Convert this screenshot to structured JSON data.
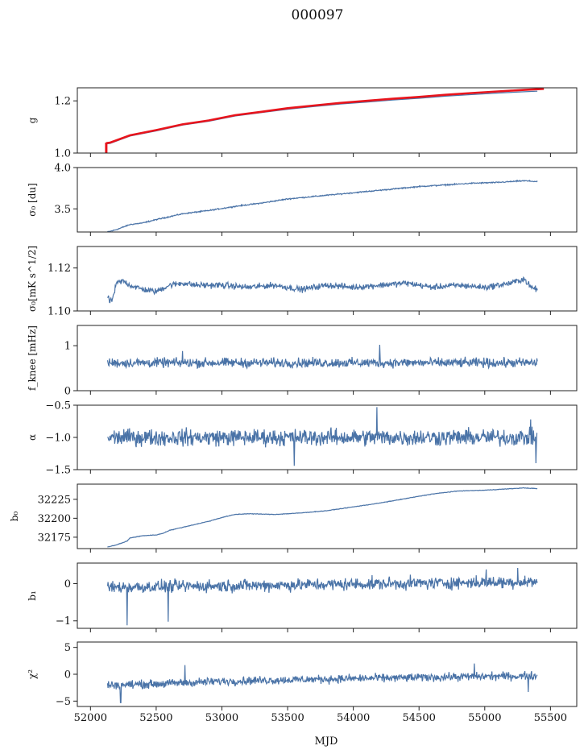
{
  "figure": {
    "title": "000097",
    "xlabel": "MJD"
  },
  "chart_data": [
    {
      "type": "line",
      "ylabel": "g",
      "xlim": [
        51900,
        55700
      ],
      "ylim": [
        1.0,
        1.25
      ],
      "yticks": [
        1.0,
        1.2
      ],
      "ytick_labels": [
        "1.0",
        "1.2"
      ],
      "x_start": 52120,
      "x_end": 55400,
      "series": [
        {
          "color": "#4a73a7",
          "x": [
            52120,
            52150,
            52300,
            52500,
            52700,
            52900,
            53100,
            53300,
            53500,
            53700,
            53900,
            54100,
            54300,
            54500,
            54700,
            54900,
            55100,
            55300,
            55400
          ],
          "y": [
            1.035,
            1.037,
            1.065,
            1.085,
            1.107,
            1.122,
            1.142,
            1.155,
            1.168,
            1.178,
            1.188,
            1.195,
            1.203,
            1.21,
            1.218,
            1.224,
            1.23,
            1.235,
            1.237
          ]
        },
        {
          "color": "#e8141c",
          "x": [
            52120,
            52150,
            52300,
            52500,
            52700,
            52900,
            53100,
            53300,
            53500,
            53700,
            53900,
            54100,
            54300,
            54500,
            54700,
            54900,
            55100,
            55300,
            55450
          ],
          "y": [
            1.038,
            1.04,
            1.068,
            1.088,
            1.11,
            1.125,
            1.145,
            1.158,
            1.172,
            1.182,
            1.192,
            1.2,
            1.208,
            1.215,
            1.223,
            1.23,
            1.236,
            1.242,
            1.246
          ]
        }
      ],
      "spike": {
        "x": 52120,
        "y_low": 1.0,
        "y_high": 1.04,
        "color": "#e8141c"
      }
    },
    {
      "type": "line",
      "ylabel": "σ₀ [du]",
      "xlim": [
        51900,
        55700
      ],
      "ylim": [
        3.22,
        4.0
      ],
      "yticks": [
        3.5,
        4.0
      ],
      "ytick_labels": [
        "3.5",
        "4.0"
      ],
      "series": [
        {
          "color": "#4a73a7",
          "x": [
            52130,
            52200,
            52300,
            52400,
            52500,
            52700,
            52900,
            53100,
            53300,
            53500,
            53700,
            53900,
            54100,
            54300,
            54500,
            54700,
            54900,
            55100,
            55300,
            55400
          ],
          "y": [
            3.22,
            3.25,
            3.31,
            3.33,
            3.37,
            3.44,
            3.48,
            3.53,
            3.57,
            3.62,
            3.65,
            3.68,
            3.71,
            3.74,
            3.77,
            3.79,
            3.81,
            3.82,
            3.84,
            3.83
          ]
        }
      ],
      "noise": 0.006
    },
    {
      "type": "line",
      "ylabel": "σ₀[mK s^1/2]",
      "xlim": [
        51900,
        55700
      ],
      "ylim": [
        1.1,
        1.13
      ],
      "yticks": [
        1.1,
        1.12
      ],
      "ytick_labels": [
        "1.10",
        "1.12"
      ],
      "series": [
        {
          "color": "#4a73a7",
          "x": [
            52130,
            52150,
            52170,
            52200,
            52250,
            52300,
            52400,
            52500,
            52600,
            52700,
            52800,
            53000,
            53200,
            53400,
            53600,
            53800,
            54000,
            54200,
            54400,
            54600,
            54800,
            55000,
            55200,
            55300,
            55350,
            55400
          ],
          "y": [
            1.107,
            1.104,
            1.106,
            1.113,
            1.114,
            1.112,
            1.11,
            1.109,
            1.112,
            1.113,
            1.112,
            1.112,
            1.111,
            1.112,
            1.11,
            1.112,
            1.111,
            1.112,
            1.113,
            1.111,
            1.112,
            1.111,
            1.113,
            1.115,
            1.111,
            1.11
          ]
        }
      ],
      "noise": 0.0012
    },
    {
      "type": "line",
      "ylabel": "f_knee [mHz]",
      "xlim": [
        51900,
        55700
      ],
      "ylim": [
        0,
        1.45
      ],
      "yticks": [
        0,
        1
      ],
      "ytick_labels": [
        "0",
        "1"
      ],
      "series": [
        {
          "color": "#4a73a7",
          "x": [
            52130,
            55400
          ],
          "y": [
            0.62,
            0.62
          ]
        }
      ],
      "noise": 0.09,
      "spikes": [
        {
          "x": 54200,
          "y": 1.02
        },
        {
          "x": 52700,
          "y": 0.88
        }
      ]
    },
    {
      "type": "line",
      "ylabel": "α",
      "xlim": [
        51900,
        55700
      ],
      "ylim": [
        -1.5,
        -0.5
      ],
      "yticks": [
        -1.5,
        -1.0,
        -0.5
      ],
      "ytick_labels": [
        "−1.5",
        "−1.0",
        "−0.5"
      ],
      "series": [
        {
          "color": "#4a73a7",
          "x": [
            52130,
            55400
          ],
          "y": [
            -1.0,
            -1.0
          ]
        }
      ],
      "noise": 0.11,
      "spikes": [
        {
          "x": 54180,
          "y": -0.53
        },
        {
          "x": 53550,
          "y": -1.44
        },
        {
          "x": 55390,
          "y": -1.4
        },
        {
          "x": 55350,
          "y": -0.72
        }
      ]
    },
    {
      "type": "line",
      "ylabel": "b₀",
      "xlim": [
        51900,
        55700
      ],
      "ylim": [
        32160,
        32245
      ],
      "yticks": [
        32175,
        32200,
        32225
      ],
      "ytick_labels": [
        "32175",
        "32200",
        "32225"
      ],
      "series": [
        {
          "color": "#4a73a7",
          "x": [
            52130,
            52200,
            52250,
            52280,
            52300,
            52400,
            52500,
            52550,
            52600,
            52700,
            52800,
            52900,
            53000,
            53100,
            53200,
            53400,
            53600,
            53800,
            54000,
            54200,
            54400,
            54600,
            54800,
            55000,
            55200,
            55300,
            55400
          ],
          "y": [
            32162,
            32165,
            32168,
            32170,
            32174,
            32177,
            32178,
            32180,
            32184,
            32188,
            32192,
            32196,
            32201,
            32205,
            32206,
            32205,
            32207,
            32210,
            32215,
            32220,
            32226,
            32232,
            32236,
            32237,
            32239,
            32240,
            32239
          ]
        }
      ],
      "noise": 0.3
    },
    {
      "type": "line",
      "ylabel": "b₁",
      "xlim": [
        51900,
        55700
      ],
      "ylim": [
        -1.2,
        0.55
      ],
      "yticks": [
        -1,
        0
      ],
      "ytick_labels": [
        "−1",
        "0"
      ],
      "series": [
        {
          "color": "#4a73a7",
          "x": [
            52130,
            55400
          ],
          "y": [
            -0.1,
            0.05
          ]
        }
      ],
      "noise": 0.14,
      "spikes": [
        {
          "x": 52280,
          "y": -1.12
        },
        {
          "x": 52590,
          "y": -1.02
        },
        {
          "x": 55250,
          "y": 0.42
        },
        {
          "x": 55010,
          "y": 0.38
        }
      ]
    },
    {
      "type": "line",
      "ylabel": "χ²",
      "xlim": [
        51900,
        55700
      ],
      "ylim": [
        -6,
        6
      ],
      "yticks": [
        -5,
        0,
        5
      ],
      "ytick_labels": [
        "−5",
        "0",
        "5"
      ],
      "series": [
        {
          "color": "#4a73a7",
          "x": [
            52130,
            52500,
            53000,
            54000,
            55000,
            55400
          ],
          "y": [
            -2.0,
            -1.8,
            -1.3,
            -0.8,
            -0.4,
            -0.3
          ]
        }
      ],
      "noise": 0.65,
      "spikes": [
        {
          "x": 52230,
          "y": -5.3
        },
        {
          "x": 52720,
          "y": 1.7
        },
        {
          "x": 54920,
          "y": 2.0
        },
        {
          "x": 55330,
          "y": -3.3
        }
      ]
    }
  ],
  "xaxis": {
    "ticks": [
      52000,
      52500,
      53000,
      53500,
      54000,
      54500,
      55000,
      55500
    ],
    "tick_labels": [
      "52000",
      "52500",
      "53000",
      "53500",
      "54000",
      "54500",
      "55000",
      "55500"
    ]
  }
}
